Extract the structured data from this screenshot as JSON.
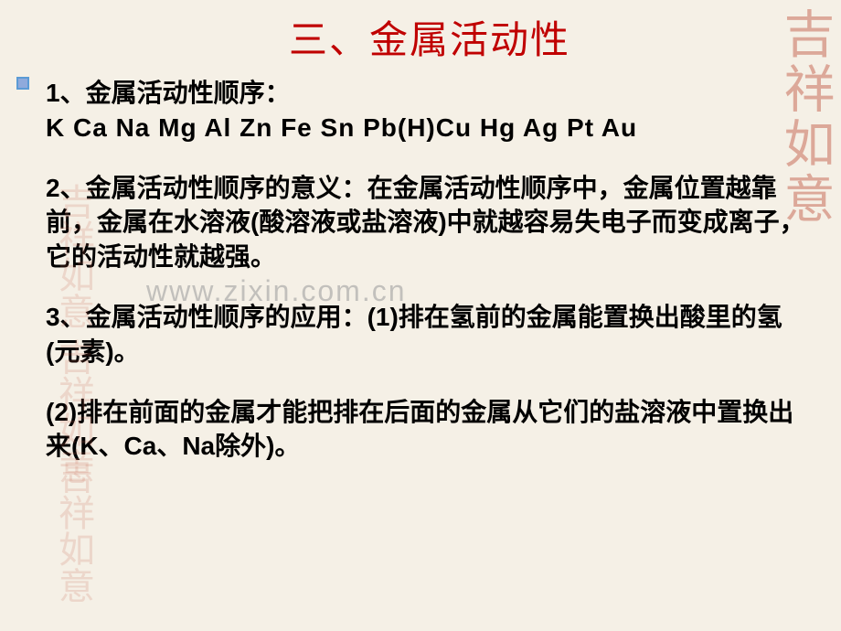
{
  "title": "三、金属活动性",
  "watermark": "www.zixin.com.cn",
  "stamp_text": "吉祥如意",
  "section1": {
    "heading": "1、金属活动性顺序：",
    "sequence": "K Ca Na Mg Al Zn Fe Sn Pb(H)Cu Hg Ag Pt Au"
  },
  "section2": {
    "text": "2、金属活动性顺序的意义：在金属活动性顺序中，金属位置越靠前，金属在水溶液(酸溶液或盐溶液)中就越容易失电子而变成离子，它的活动性就越强。"
  },
  "section3": {
    "text": "3、金属活动性顺序的应用：(1)排在氢前的金属能置换出酸里的氢(元素)。"
  },
  "section4": {
    "text": "(2)排在前面的金属才能把排在后面的金属从它们的盐溶液中置换出来(K、Ca、Na除外)。"
  },
  "colors": {
    "title_color": "#c00000",
    "text_color": "#000000",
    "background": "#f5f0e6",
    "bullet_fill": "#8faadc",
    "bullet_border": "#5b9bd5",
    "watermark_color": "rgba(160,160,160,0.6)",
    "stamp_color": "rgba(200,80,60,0.35)"
  },
  "typography": {
    "title_fontsize": 42,
    "body_fontsize": 28,
    "body_weight": "bold",
    "line_height": 1.35
  }
}
